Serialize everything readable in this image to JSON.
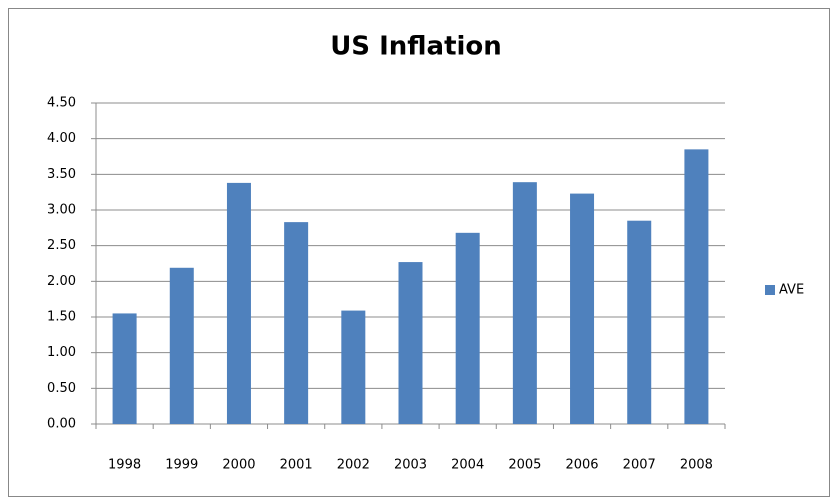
{
  "chart_data": {
    "type": "bar",
    "title": "US Inflation",
    "categories": [
      "1998",
      "1999",
      "2000",
      "2001",
      "2002",
      "2003",
      "2004",
      "2005",
      "2006",
      "2007",
      "2008"
    ],
    "series": [
      {
        "name": "AVE",
        "color": "#4f81bd",
        "values": [
          1.55,
          2.19,
          3.38,
          2.83,
          1.59,
          2.27,
          2.68,
          3.39,
          3.23,
          2.85,
          3.85
        ]
      }
    ],
    "ylim": [
      0,
      4.5
    ],
    "yticks": [
      {
        "value": 0,
        "label": "0.00"
      },
      {
        "value": 0.5,
        "label": "0.50"
      },
      {
        "value": 1,
        "label": "1.00"
      },
      {
        "value": 1.5,
        "label": "1.50"
      },
      {
        "value": 2,
        "label": "2.00"
      },
      {
        "value": 2.5,
        "label": "2.50"
      },
      {
        "value": 3,
        "label": "3.00"
      },
      {
        "value": 3.5,
        "label": "3.50"
      },
      {
        "value": 4,
        "label": "4.00"
      },
      {
        "value": 4.5,
        "label": "4.50"
      }
    ],
    "grid": true,
    "legend": "right"
  }
}
